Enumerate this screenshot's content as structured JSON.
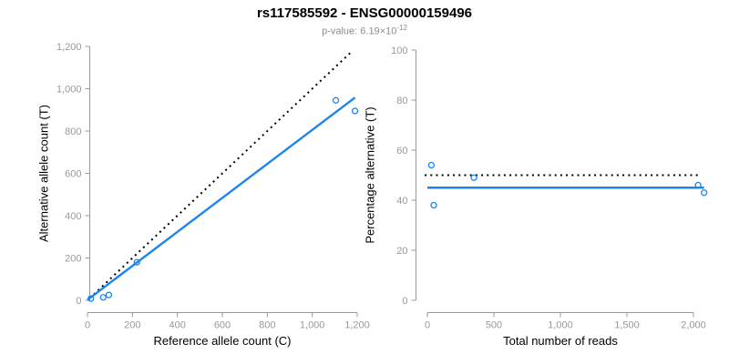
{
  "title": "rs117585592 - ENSG00000159496",
  "subtitle": {
    "text": "p-value: 6.19×10",
    "exponent": "-12"
  },
  "colors": {
    "accent_blue": "#1C86EE",
    "axis_gray": "#999999",
    "tick_label_gray": "#999999",
    "dotted_black": "#000000"
  },
  "chart_data": [
    {
      "type": "scatter",
      "panel": "left",
      "xlabel": "Reference allele count (C)",
      "ylabel": "Alternative allele count (T)",
      "xlim": [
        0,
        1200
      ],
      "ylim": [
        0,
        1200
      ],
      "grid": false,
      "xticks": {
        "values": [
          0,
          200,
          400,
          600,
          800,
          1000,
          1200
        ],
        "labels": [
          "0",
          "200",
          "400",
          "600",
          "800",
          "1,000",
          "1,200"
        ]
      },
      "yticks": {
        "values": [
          0,
          200,
          400,
          600,
          800,
          1000,
          1200
        ],
        "labels": [
          "0",
          "200",
          "400",
          "600",
          "800",
          "1,000",
          "1,200"
        ]
      },
      "points": [
        [
          15,
          8
        ],
        [
          70,
          14
        ],
        [
          95,
          25
        ],
        [
          220,
          180
        ],
        [
          1105,
          945
        ],
        [
          1190,
          895
        ]
      ],
      "lines": [
        {
          "name": "identity-line-dotted",
          "style": "dotted",
          "color": "black",
          "from": [
            10,
            10
          ],
          "to": [
            1180,
            1180
          ]
        },
        {
          "name": "regression-line",
          "style": "solid",
          "color": "blue",
          "from": [
            0,
            2
          ],
          "to": [
            1190,
            958
          ]
        }
      ]
    },
    {
      "type": "scatter",
      "panel": "right",
      "xlabel": "Total number of reads",
      "ylabel": "Percentage alternative (T)",
      "xlim": [
        0,
        2100
      ],
      "ylim": [
        0,
        100
      ],
      "grid": false,
      "xticks": {
        "values": [
          0,
          500,
          1000,
          1500,
          2000
        ],
        "labels": [
          "0",
          "500",
          "1,000",
          "1,500",
          "2,000"
        ]
      },
      "yticks": {
        "values": [
          0,
          20,
          40,
          60,
          80,
          100
        ],
        "labels": [
          "0",
          "20",
          "40",
          "60",
          "80",
          "100"
        ]
      },
      "points": [
        [
          30,
          54
        ],
        [
          48,
          38
        ],
        [
          350,
          49
        ],
        [
          2035,
          46
        ],
        [
          2080,
          43
        ]
      ],
      "lines": [
        {
          "name": "expected-50pct-line-dotted",
          "style": "dotted",
          "color": "black",
          "from": [
            -20,
            50
          ],
          "to": [
            2040,
            50
          ]
        },
        {
          "name": "fitted-percentage-line",
          "style": "solid",
          "color": "blue",
          "from": [
            0,
            45
          ],
          "to": [
            2080,
            45
          ]
        }
      ]
    }
  ]
}
